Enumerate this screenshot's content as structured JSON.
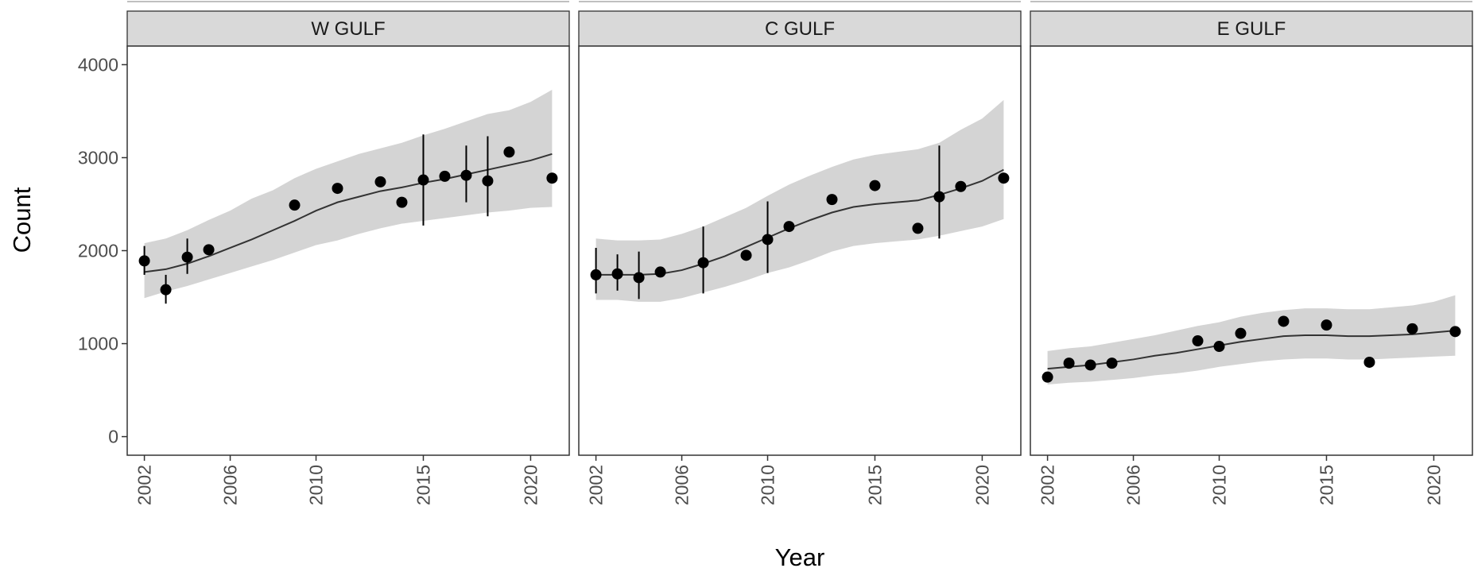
{
  "chart_data": {
    "type": "scatter",
    "xlabel": "Year",
    "ylabel": "Count",
    "xlim": [
      2001.2,
      2021.8
    ],
    "ylim": [
      -200,
      4200
    ],
    "x_ticks": [
      2002,
      2006,
      2010,
      2015,
      2020
    ],
    "y_ticks": [
      0,
      1000,
      2000,
      3000,
      4000
    ],
    "grid": false,
    "colors": {
      "band": "#d4d4d4",
      "line": "#333333",
      "point": "#000000",
      "strip": "#d9d9d9",
      "panel_border": "#333333"
    },
    "panels": [
      {
        "title": "W GULF",
        "points": [
          {
            "x": 2002,
            "y": 1890,
            "lo": 1740,
            "hi": 2050
          },
          {
            "x": 2003,
            "y": 1580,
            "lo": 1430,
            "hi": 1740
          },
          {
            "x": 2004,
            "y": 1930,
            "lo": 1750,
            "hi": 2130
          },
          {
            "x": 2005,
            "y": 2010,
            "lo": null,
            "hi": null
          },
          {
            "x": 2009,
            "y": 2490,
            "lo": null,
            "hi": null
          },
          {
            "x": 2011,
            "y": 2670,
            "lo": null,
            "hi": null
          },
          {
            "x": 2013,
            "y": 2740,
            "lo": null,
            "hi": null
          },
          {
            "x": 2014,
            "y": 2520,
            "lo": null,
            "hi": null
          },
          {
            "x": 2015,
            "y": 2760,
            "lo": 2270,
            "hi": 3250
          },
          {
            "x": 2016,
            "y": 2800,
            "lo": null,
            "hi": null
          },
          {
            "x": 2017,
            "y": 2810,
            "lo": 2520,
            "hi": 3130
          },
          {
            "x": 2018,
            "y": 2750,
            "lo": 2370,
            "hi": 3230
          },
          {
            "x": 2019,
            "y": 3060,
            "lo": null,
            "hi": null
          },
          {
            "x": 2021,
            "y": 2780,
            "lo": null,
            "hi": null
          }
        ],
        "trend": [
          {
            "x": 2002,
            "y": 1770,
            "lo": 1490,
            "hi": 2080
          },
          {
            "x": 2003,
            "y": 1800,
            "lo": 1560,
            "hi": 2130
          },
          {
            "x": 2004,
            "y": 1860,
            "lo": 1620,
            "hi": 2220
          },
          {
            "x": 2005,
            "y": 1940,
            "lo": 1690,
            "hi": 2330
          },
          {
            "x": 2006,
            "y": 2030,
            "lo": 1760,
            "hi": 2430
          },
          {
            "x": 2007,
            "y": 2120,
            "lo": 1830,
            "hi": 2560
          },
          {
            "x": 2008,
            "y": 2220,
            "lo": 1900,
            "hi": 2650
          },
          {
            "x": 2009,
            "y": 2320,
            "lo": 1980,
            "hi": 2780
          },
          {
            "x": 2010,
            "y": 2430,
            "lo": 2060,
            "hi": 2880
          },
          {
            "x": 2011,
            "y": 2520,
            "lo": 2110,
            "hi": 2960
          },
          {
            "x": 2012,
            "y": 2580,
            "lo": 2180,
            "hi": 3040
          },
          {
            "x": 2013,
            "y": 2640,
            "lo": 2240,
            "hi": 3100
          },
          {
            "x": 2014,
            "y": 2680,
            "lo": 2290,
            "hi": 3160
          },
          {
            "x": 2015,
            "y": 2730,
            "lo": 2320,
            "hi": 3240
          },
          {
            "x": 2016,
            "y": 2770,
            "lo": 2350,
            "hi": 3310
          },
          {
            "x": 2017,
            "y": 2820,
            "lo": 2380,
            "hi": 3390
          },
          {
            "x": 2018,
            "y": 2870,
            "lo": 2410,
            "hi": 3470
          },
          {
            "x": 2019,
            "y": 2920,
            "lo": 2430,
            "hi": 3510
          },
          {
            "x": 2020,
            "y": 2970,
            "lo": 2460,
            "hi": 3600
          },
          {
            "x": 2021,
            "y": 3040,
            "lo": 2470,
            "hi": 3730
          }
        ]
      },
      {
        "title": "C GULF",
        "points": [
          {
            "x": 2002,
            "y": 1740,
            "lo": 1540,
            "hi": 2030
          },
          {
            "x": 2003,
            "y": 1750,
            "lo": 1570,
            "hi": 1960
          },
          {
            "x": 2004,
            "y": 1710,
            "lo": 1480,
            "hi": 1990
          },
          {
            "x": 2005,
            "y": 1770,
            "lo": null,
            "hi": null
          },
          {
            "x": 2007,
            "y": 1870,
            "lo": 1540,
            "hi": 2260
          },
          {
            "x": 2009,
            "y": 1950,
            "lo": null,
            "hi": null
          },
          {
            "x": 2010,
            "y": 2120,
            "lo": 1760,
            "hi": 2530
          },
          {
            "x": 2011,
            "y": 2260,
            "lo": null,
            "hi": null
          },
          {
            "x": 2013,
            "y": 2550,
            "lo": null,
            "hi": null
          },
          {
            "x": 2015,
            "y": 2700,
            "lo": null,
            "hi": null
          },
          {
            "x": 2017,
            "y": 2240,
            "lo": null,
            "hi": null
          },
          {
            "x": 2018,
            "y": 2580,
            "lo": 2130,
            "hi": 3130
          },
          {
            "x": 2019,
            "y": 2690,
            "lo": null,
            "hi": null
          },
          {
            "x": 2021,
            "y": 2780,
            "lo": null,
            "hi": null
          }
        ],
        "trend": [
          {
            "x": 2002,
            "y": 1740,
            "lo": 1470,
            "hi": 2130
          },
          {
            "x": 2003,
            "y": 1740,
            "lo": 1470,
            "hi": 2110
          },
          {
            "x": 2004,
            "y": 1740,
            "lo": 1450,
            "hi": 2110
          },
          {
            "x": 2005,
            "y": 1750,
            "lo": 1450,
            "hi": 2120
          },
          {
            "x": 2006,
            "y": 1790,
            "lo": 1490,
            "hi": 2180
          },
          {
            "x": 2007,
            "y": 1860,
            "lo": 1550,
            "hi": 2260
          },
          {
            "x": 2008,
            "y": 1940,
            "lo": 1610,
            "hi": 2360
          },
          {
            "x": 2009,
            "y": 2040,
            "lo": 1680,
            "hi": 2460
          },
          {
            "x": 2010,
            "y": 2140,
            "lo": 1760,
            "hi": 2590
          },
          {
            "x": 2011,
            "y": 2240,
            "lo": 1820,
            "hi": 2710
          },
          {
            "x": 2012,
            "y": 2330,
            "lo": 1900,
            "hi": 2810
          },
          {
            "x": 2013,
            "y": 2410,
            "lo": 1990,
            "hi": 2900
          },
          {
            "x": 2014,
            "y": 2470,
            "lo": 2050,
            "hi": 2980
          },
          {
            "x": 2015,
            "y": 2500,
            "lo": 2080,
            "hi": 3030
          },
          {
            "x": 2016,
            "y": 2520,
            "lo": 2100,
            "hi": 3060
          },
          {
            "x": 2017,
            "y": 2540,
            "lo": 2120,
            "hi": 3090
          },
          {
            "x": 2018,
            "y": 2600,
            "lo": 2160,
            "hi": 3160
          },
          {
            "x": 2019,
            "y": 2670,
            "lo": 2210,
            "hi": 3300
          },
          {
            "x": 2020,
            "y": 2750,
            "lo": 2260,
            "hi": 3420
          },
          {
            "x": 2021,
            "y": 2870,
            "lo": 2340,
            "hi": 3620
          }
        ]
      },
      {
        "title": "E GULF",
        "points": [
          {
            "x": 2002,
            "y": 640,
            "lo": null,
            "hi": null
          },
          {
            "x": 2003,
            "y": 790,
            "lo": null,
            "hi": null
          },
          {
            "x": 2004,
            "y": 770,
            "lo": null,
            "hi": null
          },
          {
            "x": 2005,
            "y": 790,
            "lo": null,
            "hi": null
          },
          {
            "x": 2009,
            "y": 1030,
            "lo": null,
            "hi": null
          },
          {
            "x": 2010,
            "y": 970,
            "lo": null,
            "hi": null
          },
          {
            "x": 2011,
            "y": 1110,
            "lo": null,
            "hi": null
          },
          {
            "x": 2013,
            "y": 1240,
            "lo": null,
            "hi": null
          },
          {
            "x": 2015,
            "y": 1200,
            "lo": null,
            "hi": null
          },
          {
            "x": 2017,
            "y": 800,
            "lo": null,
            "hi": null
          },
          {
            "x": 2019,
            "y": 1160,
            "lo": null,
            "hi": null
          },
          {
            "x": 2021,
            "y": 1130,
            "lo": null,
            "hi": null
          }
        ],
        "trend": [
          {
            "x": 2002,
            "y": 730,
            "lo": 560,
            "hi": 920
          },
          {
            "x": 2003,
            "y": 750,
            "lo": 580,
            "hi": 950
          },
          {
            "x": 2004,
            "y": 770,
            "lo": 590,
            "hi": 970
          },
          {
            "x": 2005,
            "y": 800,
            "lo": 610,
            "hi": 1010
          },
          {
            "x": 2006,
            "y": 830,
            "lo": 630,
            "hi": 1050
          },
          {
            "x": 2007,
            "y": 870,
            "lo": 660,
            "hi": 1090
          },
          {
            "x": 2008,
            "y": 900,
            "lo": 680,
            "hi": 1140
          },
          {
            "x": 2009,
            "y": 940,
            "lo": 710,
            "hi": 1190
          },
          {
            "x": 2010,
            "y": 980,
            "lo": 750,
            "hi": 1230
          },
          {
            "x": 2011,
            "y": 1020,
            "lo": 780,
            "hi": 1290
          },
          {
            "x": 2012,
            "y": 1050,
            "lo": 810,
            "hi": 1330
          },
          {
            "x": 2013,
            "y": 1080,
            "lo": 830,
            "hi": 1360
          },
          {
            "x": 2014,
            "y": 1090,
            "lo": 840,
            "hi": 1380
          },
          {
            "x": 2015,
            "y": 1090,
            "lo": 840,
            "hi": 1380
          },
          {
            "x": 2016,
            "y": 1080,
            "lo": 830,
            "hi": 1370
          },
          {
            "x": 2017,
            "y": 1080,
            "lo": 830,
            "hi": 1370
          },
          {
            "x": 2018,
            "y": 1090,
            "lo": 840,
            "hi": 1390
          },
          {
            "x": 2019,
            "y": 1100,
            "lo": 850,
            "hi": 1410
          },
          {
            "x": 2020,
            "y": 1120,
            "lo": 860,
            "hi": 1450
          },
          {
            "x": 2021,
            "y": 1140,
            "lo": 870,
            "hi": 1520
          }
        ]
      }
    ]
  }
}
